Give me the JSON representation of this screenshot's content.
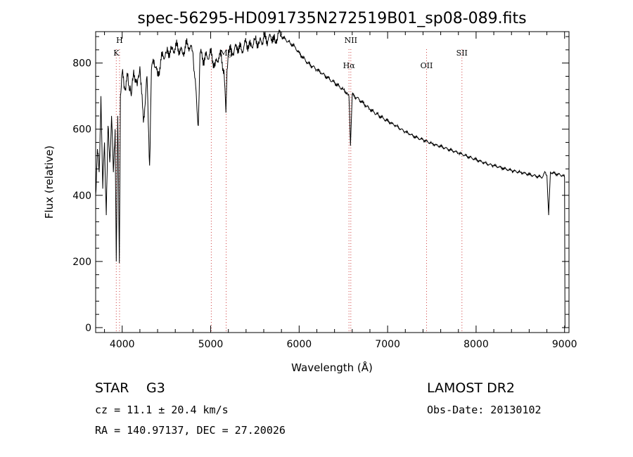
{
  "chart_data": {
    "type": "line",
    "title": "spec-56295-HD091735N272519B01_sp08-089.fits",
    "xlabel": "Wavelength (Å)",
    "ylabel": "Flux (relative)",
    "xlim": [
      3700,
      9050
    ],
    "ylim": [
      -15,
      895
    ],
    "xticks": [
      4000,
      5000,
      6000,
      7000,
      8000,
      9000
    ],
    "yticks": [
      0,
      200,
      400,
      600,
      800
    ],
    "series": [
      {
        "name": "flux",
        "x": [
          3700,
          3720,
          3740,
          3760,
          3780,
          3800,
          3820,
          3840,
          3860,
          3880,
          3900,
          3920,
          3933,
          3950,
          3968,
          3980,
          4000,
          4030,
          4060,
          4102,
          4130,
          4170,
          4200,
          4240,
          4280,
          4310,
          4330,
          4340,
          4360,
          4400,
          4450,
          4500,
          4560,
          4620,
          4680,
          4740,
          4800,
          4861,
          4880,
          4920,
          4960,
          5000,
          5050,
          5100,
          5150,
          5172,
          5185,
          5200,
          5250,
          5300,
          5350,
          5400,
          5450,
          5500,
          5550,
          5600,
          5650,
          5700,
          5730,
          5760,
          5800,
          5850,
          5900,
          5950,
          6000,
          6050,
          6100,
          6150,
          6200,
          6250,
          6300,
          6350,
          6400,
          6450,
          6500,
          6540,
          6563,
          6580,
          6600,
          6650,
          6700,
          6750,
          6800,
          6850,
          6900,
          6950,
          7000,
          7050,
          7100,
          7150,
          7200,
          7250,
          7300,
          7350,
          7400,
          7450,
          7500,
          7550,
          7600,
          7650,
          7700,
          7750,
          7800,
          7850,
          7900,
          7950,
          8000,
          8050,
          8100,
          8150,
          8200,
          8250,
          8300,
          8350,
          8400,
          8450,
          8500,
          8550,
          8600,
          8650,
          8700,
          8750,
          8780,
          8800,
          8820,
          8840,
          8860,
          8900,
          8950,
          8980,
          9000,
          9005
        ],
        "values": [
          400,
          540,
          470,
          700,
          420,
          560,
          340,
          610,
          500,
          640,
          470,
          600,
          200,
          640,
          195,
          700,
          770,
          720,
          760,
          700,
          780,
          730,
          790,
          620,
          760,
          490,
          780,
          800,
          810,
          760,
          820,
          830,
          840,
          850,
          830,
          860,
          830,
          610,
          830,
          810,
          820,
          830,
          790,
          830,
          780,
          650,
          780,
          840,
          830,
          850,
          840,
          860,
          850,
          870,
          860,
          875,
          870,
          880,
          860,
          890,
          880,
          870,
          860,
          850,
          830,
          815,
          800,
          790,
          780,
          770,
          760,
          750,
          740,
          730,
          720,
          710,
          700,
          550,
          705,
          695,
          685,
          672,
          660,
          650,
          642,
          633,
          625,
          617,
          610,
          600,
          592,
          585,
          578,
          572,
          568,
          562,
          557,
          552,
          548,
          543,
          538,
          533,
          528,
          523,
          518,
          513,
          508,
          503,
          498,
          493,
          490,
          486,
          482,
          478,
          475,
          472,
          470,
          467,
          463,
          460,
          457,
          455,
          470,
          460,
          340,
          470,
          468,
          465,
          462,
          460,
          455,
          0
        ]
      }
    ],
    "line_markers": [
      {
        "label": "H",
        "wavelength": 3970,
        "row": 0
      },
      {
        "label": "K",
        "wavelength": 3933,
        "row": 1
      },
      {
        "label": "Mg",
        "wavelength": 5175,
        "row": 1
      },
      {
        "label": "",
        "wavelength": 5007,
        "row": 1
      },
      {
        "label": "NII",
        "wavelength": 6584,
        "row": 0
      },
      {
        "label": "Hα",
        "wavelength": 6563,
        "row": 2
      },
      {
        "label": "OII",
        "wavelength": 7440,
        "row": 2
      },
      {
        "label": "SII",
        "wavelength": 7840,
        "row": 1
      }
    ]
  },
  "footer": {
    "object_class": "STAR",
    "subclass": "G3",
    "survey": "LAMOST DR2",
    "redshift": "cz = 11.1 ± 20.4 km/s",
    "obs_date": "Obs-Date: 20130102",
    "coords": "RA = 140.97137, DEC =  27.20026"
  },
  "colors": {
    "ink": "#000000",
    "marker": "#d04040"
  }
}
